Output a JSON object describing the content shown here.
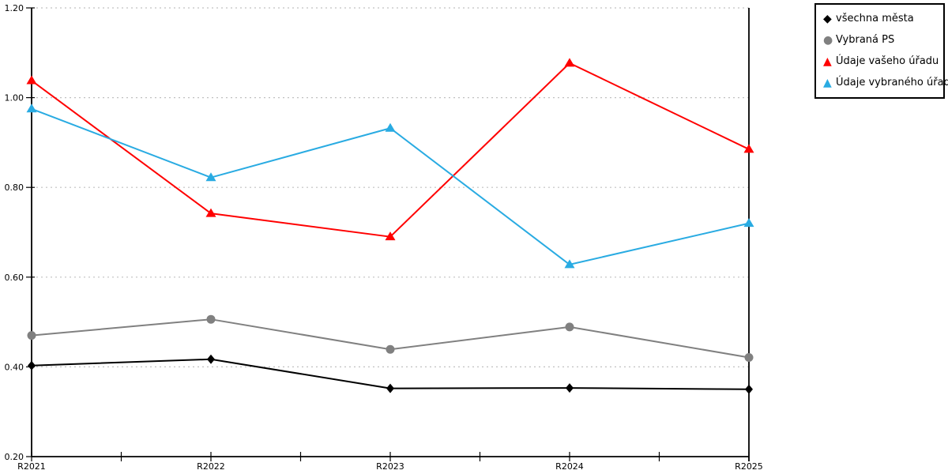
{
  "page": {
    "background_color": "#ffffff"
  },
  "chart_data": {
    "type": "line",
    "title": "",
    "xlabel": "",
    "ylabel": "",
    "categories": [
      "R2021",
      "R2022",
      "R2023",
      "R2024",
      "R2025"
    ],
    "series": [
      {
        "name": "všechna města",
        "marker": "diamond",
        "color": "#000000",
        "values": [
          0.403,
          0.417,
          0.352,
          0.353,
          0.35
        ]
      },
      {
        "name": "Vybraná PS",
        "marker": "circle",
        "color": "#808080",
        "values": [
          0.47,
          0.506,
          0.439,
          0.489,
          0.421
        ]
      },
      {
        "name": "Údaje vašeho úřadu",
        "marker": "triangle",
        "color": "#ff0000",
        "values": [
          1.038,
          0.742,
          0.69,
          1.077,
          0.885
        ]
      },
      {
        "name": "Údaje vybraného úřadu",
        "marker": "triangle",
        "color": "#29abe2",
        "values": [
          0.975,
          0.822,
          0.932,
          0.628,
          0.72
        ]
      }
    ],
    "ylim": [
      0.2,
      1.2
    ],
    "yticks": [
      0.2,
      0.4,
      0.6,
      0.8,
      1.0,
      1.2
    ],
    "ytick_labels": [
      "0.20",
      "0.40",
      "0.60",
      "0.80",
      "1.00",
      "1.20"
    ],
    "grid": "horizontal dashed gridlines at y ticks above axis",
    "gridline_color": "#c0c0c0",
    "axis_color": "#000000",
    "x_minor_ticks": "unlabeled tick at midpoint between each pair of category ticks",
    "legend_position": "outside top-right, black bordered box"
  },
  "legend": {
    "marker_glyphs": {
      "diamond": "◆",
      "circle": "●",
      "triangle": "▲"
    }
  }
}
